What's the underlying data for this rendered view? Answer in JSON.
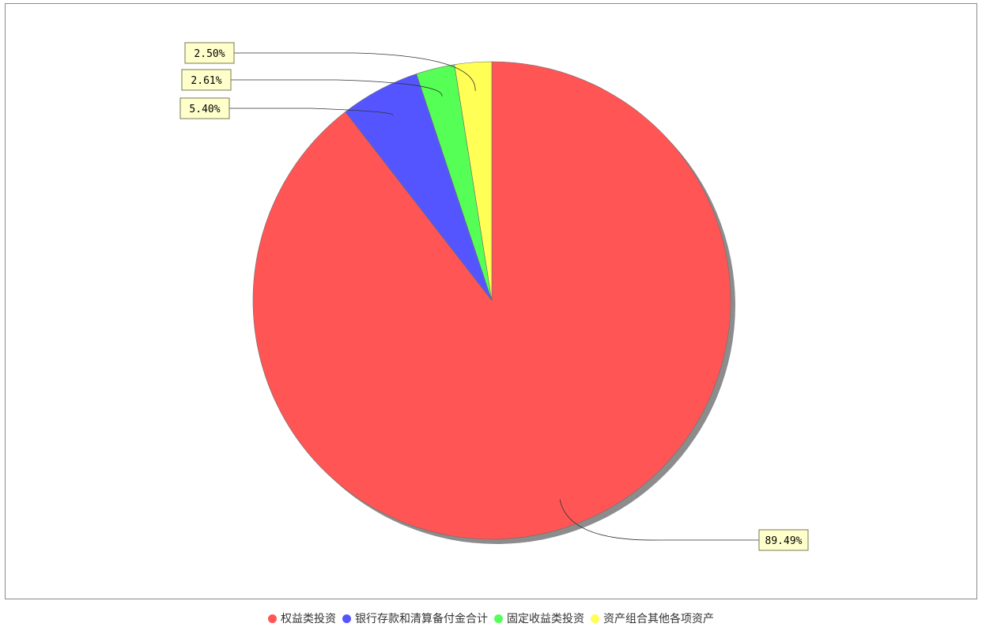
{
  "chart_data": {
    "type": "pie",
    "title": "",
    "legend_position": "bottom",
    "slices": [
      {
        "name": "权益类投资",
        "value": 89.49,
        "label": "89.49%",
        "color": "#ff5555"
      },
      {
        "name": "银行存款和清算备付金合计",
        "value": 5.4,
        "label": "5.40%",
        "color": "#5555ff"
      },
      {
        "name": "固定收益类投资",
        "value": 2.61,
        "label": "2.61%",
        "color": "#55ff55"
      },
      {
        "name": "资产组合其他各项资产",
        "value": 2.5,
        "label": "2.50%",
        "color": "#ffff55"
      }
    ]
  }
}
